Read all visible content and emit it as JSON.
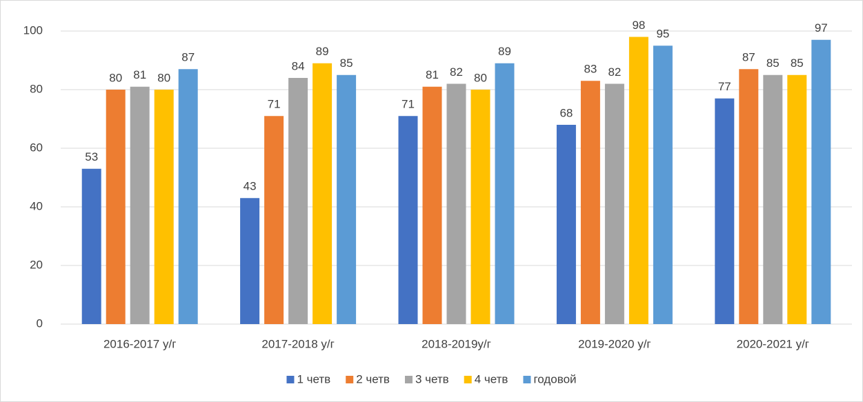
{
  "chart_data": {
    "type": "bar",
    "categories": [
      "2016-2017 у/г",
      "2017-2018 у/г",
      "2018-2019у/г",
      "2019-2020 у/г",
      "2020-2021 у/г"
    ],
    "series": [
      {
        "name": "1 четв",
        "color": "#4472c4",
        "values": [
          53,
          43,
          71,
          68,
          77
        ]
      },
      {
        "name": "2 четв",
        "color": "#ed7d31",
        "values": [
          80,
          71,
          81,
          83,
          87
        ]
      },
      {
        "name": "3 четв",
        "color": "#a5a5a5",
        "values": [
          81,
          84,
          82,
          82,
          85
        ]
      },
      {
        "name": "4 четв",
        "color": "#ffc000",
        "values": [
          80,
          89,
          80,
          98,
          85
        ]
      },
      {
        "name": "годовой",
        "color": "#5b9bd5",
        "values": [
          87,
          85,
          89,
          95,
          97
        ]
      }
    ],
    "ylim": [
      0,
      100
    ],
    "yticks": [
      0,
      20,
      40,
      60,
      80,
      100
    ],
    "grid": true,
    "legend": "bottom"
  }
}
